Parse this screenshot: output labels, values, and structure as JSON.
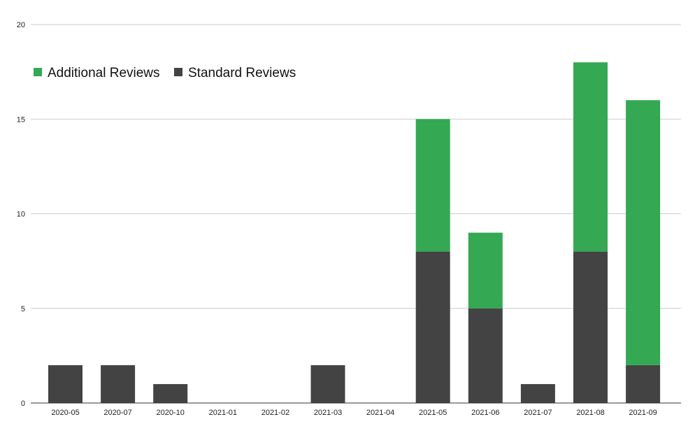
{
  "chart_data": {
    "type": "bar",
    "stacked": true,
    "title": "",
    "xlabel": "",
    "ylabel": "",
    "categories": [
      "2020-05",
      "2020-07",
      "2020-10",
      "2021-01",
      "2021-02",
      "2021-03",
      "2021-04",
      "2021-05",
      "2021-06",
      "2021-07",
      "2021-08",
      "2021-09"
    ],
    "series": [
      {
        "name": "Standard Reviews",
        "color": "#434343",
        "values": [
          2,
          2,
          1,
          0,
          0,
          2,
          0,
          8,
          5,
          1,
          8,
          2
        ]
      },
      {
        "name": "Additional Reviews",
        "color": "#34a853",
        "values": [
          0,
          0,
          0,
          0,
          0,
          0,
          0,
          7,
          4,
          0,
          10,
          14
        ]
      }
    ],
    "ylim": [
      0,
      20
    ],
    "yticks": [
      0,
      5,
      10,
      15,
      20
    ],
    "grid": true,
    "legend": {
      "placement": "top-left",
      "entries": [
        {
          "label": "Additional Reviews",
          "color": "#34a853"
        },
        {
          "label": "Standard Reviews",
          "color": "#434343"
        }
      ]
    }
  }
}
